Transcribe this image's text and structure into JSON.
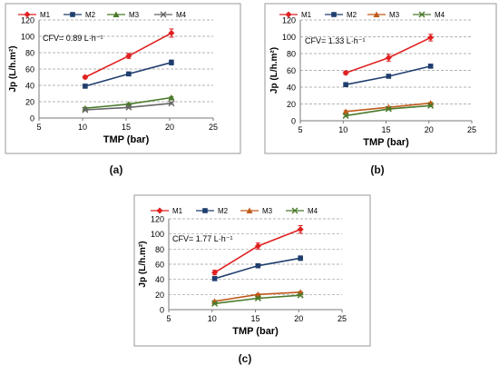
{
  "chart_data": [
    {
      "type": "line",
      "panel_label": "(a)",
      "annotation": "CFV= 0.89 L·h⁻¹",
      "xlabel": "TMP (bar)",
      "ylabel": "Jp (L/h.m²)",
      "xlim": [
        5,
        25
      ],
      "ylim": [
        0,
        120
      ],
      "xticks": [
        "5",
        "10",
        "15",
        "20",
        "25"
      ],
      "yticks": [
        "0",
        "20",
        "40",
        "60",
        "80",
        "100",
        "120"
      ],
      "grid": "horizontal-dashed",
      "legend_position": "top",
      "x": [
        10.3,
        15.3,
        20.2
      ],
      "series": [
        {
          "name": "M1",
          "color": "#e02020",
          "marker": "diamond",
          "values": [
            50,
            76,
            104
          ],
          "errors": [
            2,
            3,
            5
          ]
        },
        {
          "name": "M2",
          "color": "#1f3e6e",
          "marker": "square",
          "values": [
            39,
            54,
            68
          ],
          "errors": [
            2,
            2,
            3
          ]
        },
        {
          "name": "M3",
          "color": "#4a7a2a",
          "marker": "triangle",
          "values": [
            12,
            17,
            25
          ],
          "errors": [
            1,
            1,
            1
          ]
        },
        {
          "name": "M4",
          "color": "#666666",
          "marker": "x",
          "values": [
            10,
            13,
            18
          ],
          "errors": [
            1,
            1,
            1
          ]
        }
      ]
    },
    {
      "type": "line",
      "panel_label": "(b)",
      "annotation": "CFV= 1.33 L·h⁻¹",
      "xlabel": "TMP (bar)",
      "ylabel": "Jp (L/h.m²)",
      "xlim": [
        5,
        25
      ],
      "ylim": [
        0,
        120
      ],
      "xticks": [
        "5",
        "10",
        "15",
        "20",
        "25"
      ],
      "yticks": [
        "0",
        "20",
        "40",
        "60",
        "80",
        "100",
        "120"
      ],
      "grid": "horizontal-dashed",
      "legend_position": "top",
      "x": [
        10.3,
        15.3,
        20.2
      ],
      "series": [
        {
          "name": "M1",
          "color": "#e02020",
          "marker": "diamond",
          "values": [
            57,
            75,
            99
          ],
          "errors": [
            2,
            4,
            4
          ]
        },
        {
          "name": "M2",
          "color": "#1f3e6e",
          "marker": "square",
          "values": [
            43,
            53,
            65
          ],
          "errors": [
            1,
            2,
            2
          ]
        },
        {
          "name": "M3",
          "color": "#c05a1a",
          "marker": "triangle",
          "values": [
            11,
            16,
            21
          ],
          "errors": [
            1,
            1,
            1
          ]
        },
        {
          "name": "M4",
          "color": "#4a7a2a",
          "marker": "x",
          "values": [
            6,
            14,
            18
          ],
          "errors": [
            1,
            1,
            1
          ]
        }
      ]
    },
    {
      "type": "line",
      "panel_label": "(c)",
      "annotation": "CFV= 1.77 L·h⁻¹",
      "xlabel": "TMP (bar)",
      "ylabel": "Jp (L/h.m²)",
      "xlim": [
        5,
        25
      ],
      "ylim": [
        0,
        120
      ],
      "xticks": [
        "5",
        "10",
        "15",
        "20",
        "25"
      ],
      "yticks": [
        "0",
        "20",
        "40",
        "60",
        "80",
        "100",
        "120"
      ],
      "grid": "horizontal-dashed",
      "legend_position": "top",
      "x": [
        10.3,
        15.3,
        20.2
      ],
      "series": [
        {
          "name": "M1",
          "color": "#e02020",
          "marker": "diamond",
          "values": [
            49,
            84,
            106
          ],
          "errors": [
            3,
            4,
            5
          ]
        },
        {
          "name": "M2",
          "color": "#1f3e6e",
          "marker": "square",
          "values": [
            41,
            58,
            68
          ],
          "errors": [
            2,
            2,
            3
          ]
        },
        {
          "name": "M3",
          "color": "#c05a1a",
          "marker": "triangle",
          "values": [
            11,
            20,
            23
          ],
          "errors": [
            1,
            1,
            1
          ]
        },
        {
          "name": "M4",
          "color": "#4a7a2a",
          "marker": "x",
          "values": [
            8,
            15,
            19
          ],
          "errors": [
            1,
            1,
            1
          ]
        }
      ]
    }
  ]
}
